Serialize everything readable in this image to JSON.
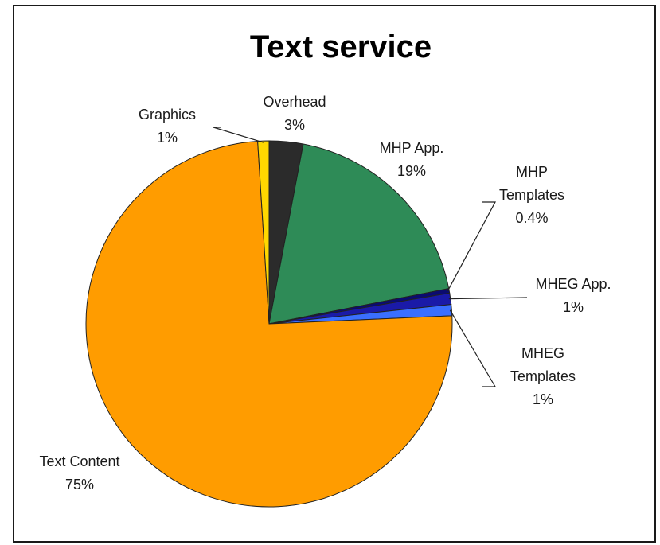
{
  "chart_data": {
    "type": "pie",
    "title": "Text service",
    "start_angle_deg": -90,
    "direction": "clockwise",
    "slices": [
      {
        "label_lines": [
          "Overhead"
        ],
        "value_label": "3%",
        "value": 3,
        "color": "#2b2b2b"
      },
      {
        "label_lines": [
          "MHP App."
        ],
        "value_label": "19%",
        "value": 19,
        "color": "#2e8b57"
      },
      {
        "label_lines": [
          "MHP",
          "Templates"
        ],
        "value_label": "0.4%",
        "value": 0.4,
        "color": "#0b0b70"
      },
      {
        "label_lines": [
          "MHEG App."
        ],
        "value_label": "1%",
        "value": 1,
        "color": "#1a1aa8"
      },
      {
        "label_lines": [
          "MHEG",
          "Templates"
        ],
        "value_label": "1%",
        "value": 1,
        "color": "#3a6fff"
      },
      {
        "label_lines": [
          "Text Content"
        ],
        "value_label": "75%",
        "value": 75,
        "color": "#ff9c00"
      },
      {
        "label_lines": [
          "Graphics"
        ],
        "value_label": "1%",
        "value": 1,
        "color": "#ffd800"
      }
    ]
  }
}
